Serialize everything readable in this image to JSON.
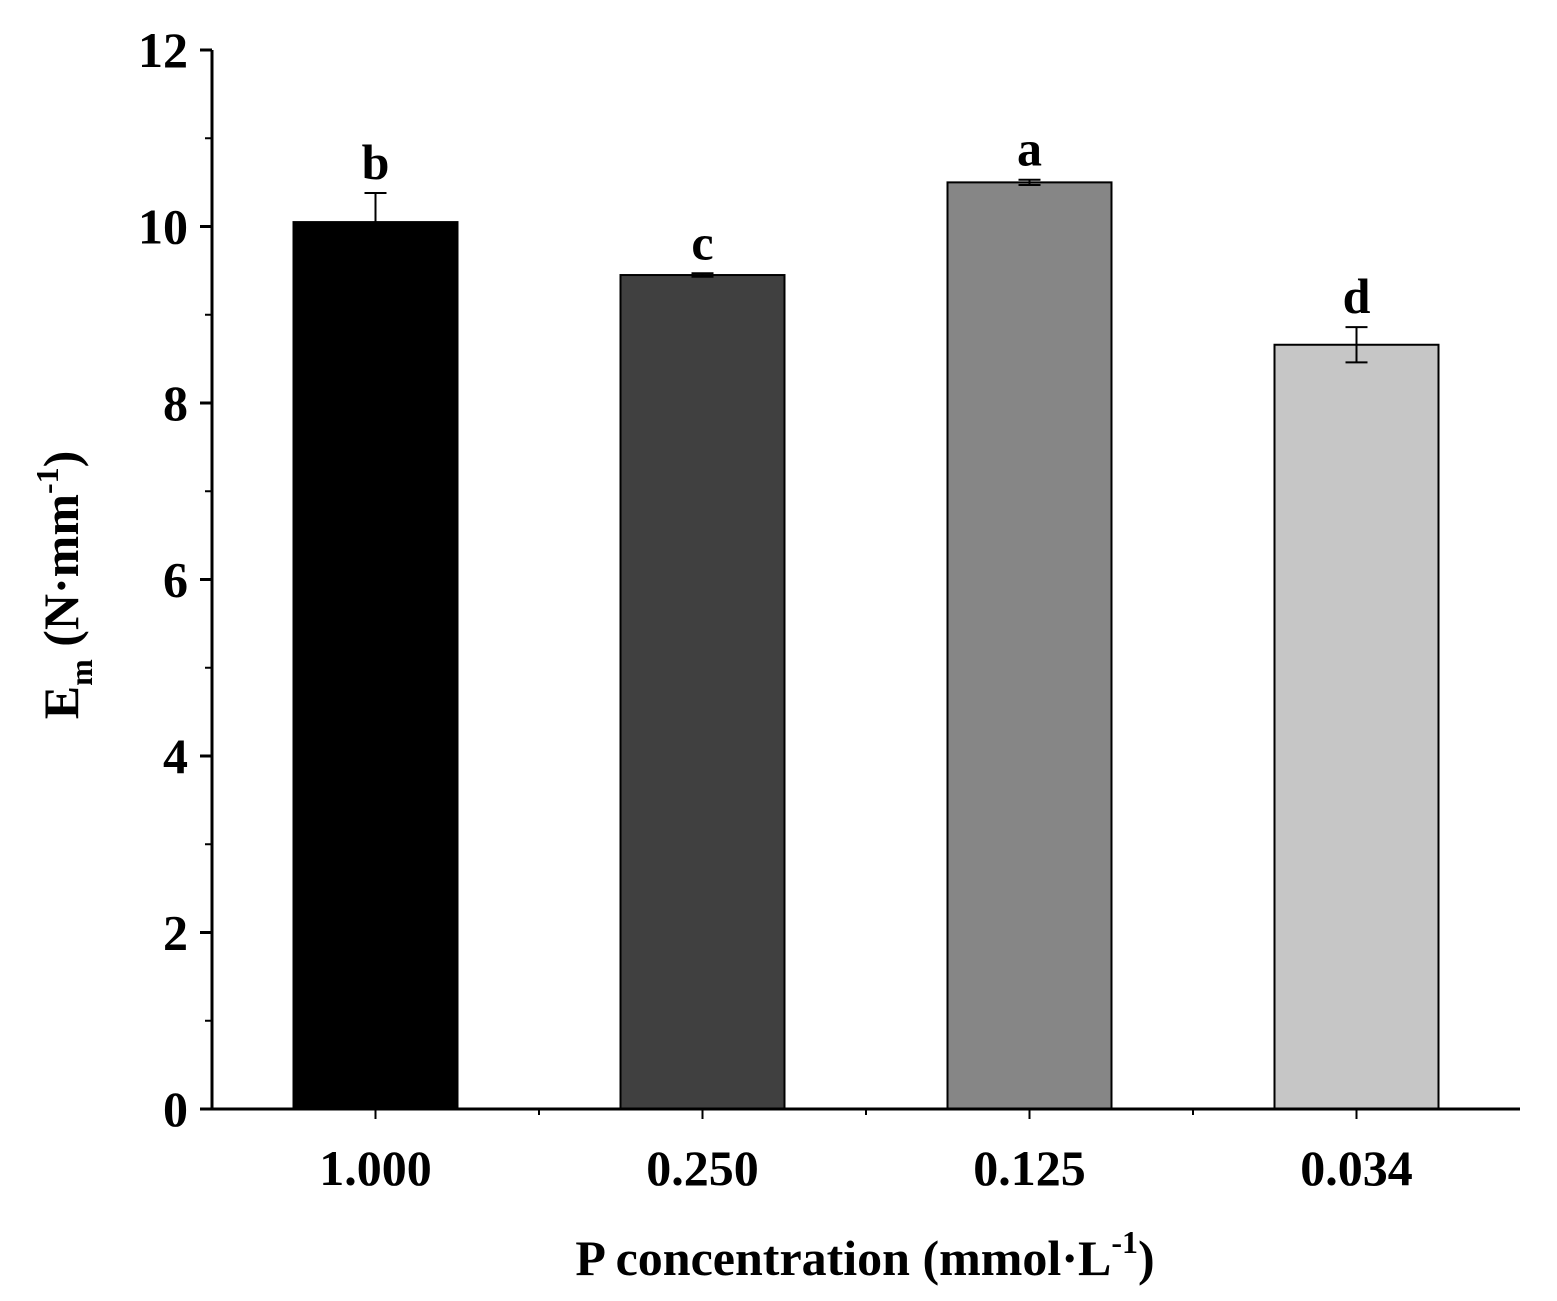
{
  "chart_data": {
    "type": "bar",
    "title": "",
    "categories": [
      "1.000",
      "0.250",
      "0.125",
      "0.034"
    ],
    "values": [
      10.05,
      9.45,
      10.5,
      8.66
    ],
    "errors": [
      0.33,
      0.02,
      0.03,
      0.2
    ],
    "significance": [
      "b",
      "c",
      "a",
      "d"
    ],
    "bar_colors": [
      "#000000",
      "#404040",
      "#868686",
      "#c6c6c6"
    ],
    "ylim": [
      0,
      12
    ],
    "yticks": [
      0,
      2,
      4,
      6,
      8,
      10,
      12
    ],
    "ytick_labels": [
      "0",
      "2",
      "4",
      "6",
      "8",
      "10",
      "12"
    ],
    "ylabel": {
      "main": "E",
      "sub": "m",
      "pre": " (N·mm",
      "sup": "-1",
      "post": ")"
    },
    "xlabel": {
      "pre": "P concentration (mmol·L",
      "sup": "-1",
      "post": ")"
    },
    "grid": false,
    "legend": false
  }
}
